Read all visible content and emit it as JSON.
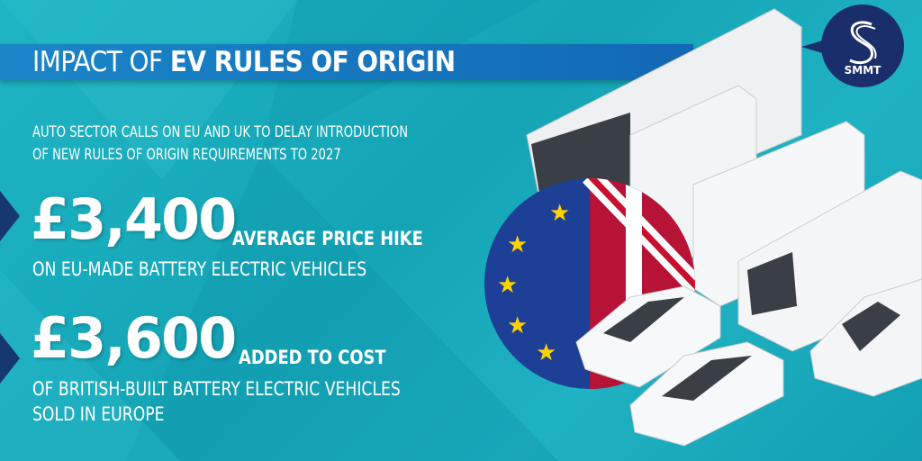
{
  "header": {
    "title_light": "IMPACT OF",
    "title_bold": "EV RULES OF ORIGIN"
  },
  "subtitle": {
    "line1": "AUTO SECTOR CALLS ON EU AND UK TO DELAY INTRODUCTION",
    "line2": "OF NEW RULES OF ORIGIN REQUIREMENTS TO 2027"
  },
  "stats": [
    {
      "value": "£3,400",
      "label": "AVERAGE PRICE HIKE",
      "desc": [
        "ON EU-MADE BATTERY ELECTRIC VEHICLES"
      ]
    },
    {
      "value": "£3,600",
      "label": "ADDED TO COST",
      "desc": [
        "OF BRITISH-BUILT BATTERY ELECTRIC VEHICLES",
        "SOLD IN EUROPE"
      ]
    }
  ],
  "logo": {
    "text": "SMMT"
  },
  "colors": {
    "background": "#17abbc",
    "title_bar": "#1477c0",
    "logo": "#1b2e6c",
    "eu_blue": "#1d3f95",
    "uk_red": "#c8102e"
  },
  "icons": [
    "eu-uk-flag-icon",
    "bus-icon",
    "truck-icon",
    "van-icon",
    "car-icon",
    "smmt-logo-icon"
  ]
}
